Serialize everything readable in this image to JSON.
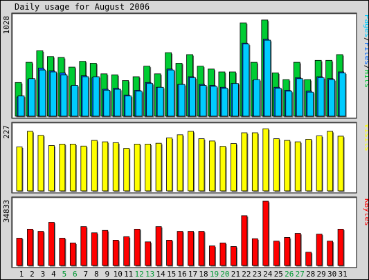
{
  "title": "Daily usage for August 2006",
  "colors": {
    "hits": "#00cc33",
    "files": "#00ccff",
    "pages": "#0066ff",
    "visits": "#ffff00",
    "kbytes": "#ff0000",
    "weekday_label": "#000000",
    "weekend_label": "#009933",
    "background": "#d7d7d7",
    "panel": "#ffffff"
  },
  "chart_data": [
    {
      "type": "bar",
      "name": "hits-files-pages",
      "ylabel_max": "1028",
      "ylim": [
        0,
        1028
      ],
      "legend": [
        "Pages",
        "/",
        "Files",
        "/",
        "Hits"
      ],
      "categories": [
        "1",
        "2",
        "3",
        "4",
        "5",
        "6",
        "7",
        "8",
        "9",
        "10",
        "11",
        "12",
        "13",
        "14",
        "15",
        "16",
        "17",
        "18",
        "19",
        "20",
        "21",
        "22",
        "23",
        "24",
        "25",
        "26",
        "27",
        "28",
        "29",
        "30",
        "31"
      ],
      "series": [
        {
          "name": "Hits",
          "values": [
            350,
            560,
            680,
            620,
            610,
            510,
            570,
            550,
            440,
            430,
            370,
            410,
            520,
            440,
            660,
            550,
            640,
            520,
            490,
            460,
            460,
            970,
            560,
            1000,
            450,
            380,
            560,
            380,
            580,
            580,
            640
          ]
        },
        {
          "name": "Files",
          "values": [
            210,
            390,
            480,
            460,
            430,
            320,
            410,
            410,
            270,
            280,
            210,
            260,
            340,
            300,
            480,
            330,
            400,
            320,
            310,
            290,
            340,
            750,
            380,
            790,
            290,
            260,
            390,
            250,
            400,
            380,
            450
          ]
        },
        {
          "name": "Pages",
          "values": [
            200,
            380,
            500,
            470,
            450,
            310,
            420,
            400,
            280,
            290,
            220,
            270,
            350,
            300,
            490,
            330,
            410,
            330,
            320,
            300,
            340,
            760,
            370,
            800,
            300,
            270,
            400,
            260,
            410,
            390,
            460
          ]
        }
      ]
    },
    {
      "type": "bar",
      "name": "visits",
      "ylabel_max": "227",
      "ylim": [
        0,
        227
      ],
      "legend": [
        "Visits"
      ],
      "series": [
        {
          "name": "Visits",
          "values": [
            155,
            210,
            196,
            160,
            165,
            165,
            158,
            178,
            173,
            170,
            150,
            165,
            165,
            168,
            187,
            198,
            210,
            184,
            176,
            157,
            167,
            205,
            205,
            219,
            184,
            178,
            173,
            182,
            194,
            210,
            193
          ]
        }
      ]
    },
    {
      "type": "bar",
      "name": "kbytes",
      "ylabel_max": "34833",
      "ylim": [
        0,
        34833
      ],
      "legend": [
        "KBytes"
      ],
      "series": [
        {
          "name": "KBytes",
          "values": [
            14800,
            19700,
            18500,
            23400,
            14800,
            12200,
            21100,
            17700,
            19000,
            13700,
            15600,
            19700,
            12800,
            21100,
            13700,
            18500,
            18500,
            18500,
            10600,
            12200,
            10300,
            27000,
            14500,
            34833,
            13200,
            15200,
            17400,
            7200,
            17000,
            13200,
            19700
          ]
        }
      ]
    }
  ]
}
